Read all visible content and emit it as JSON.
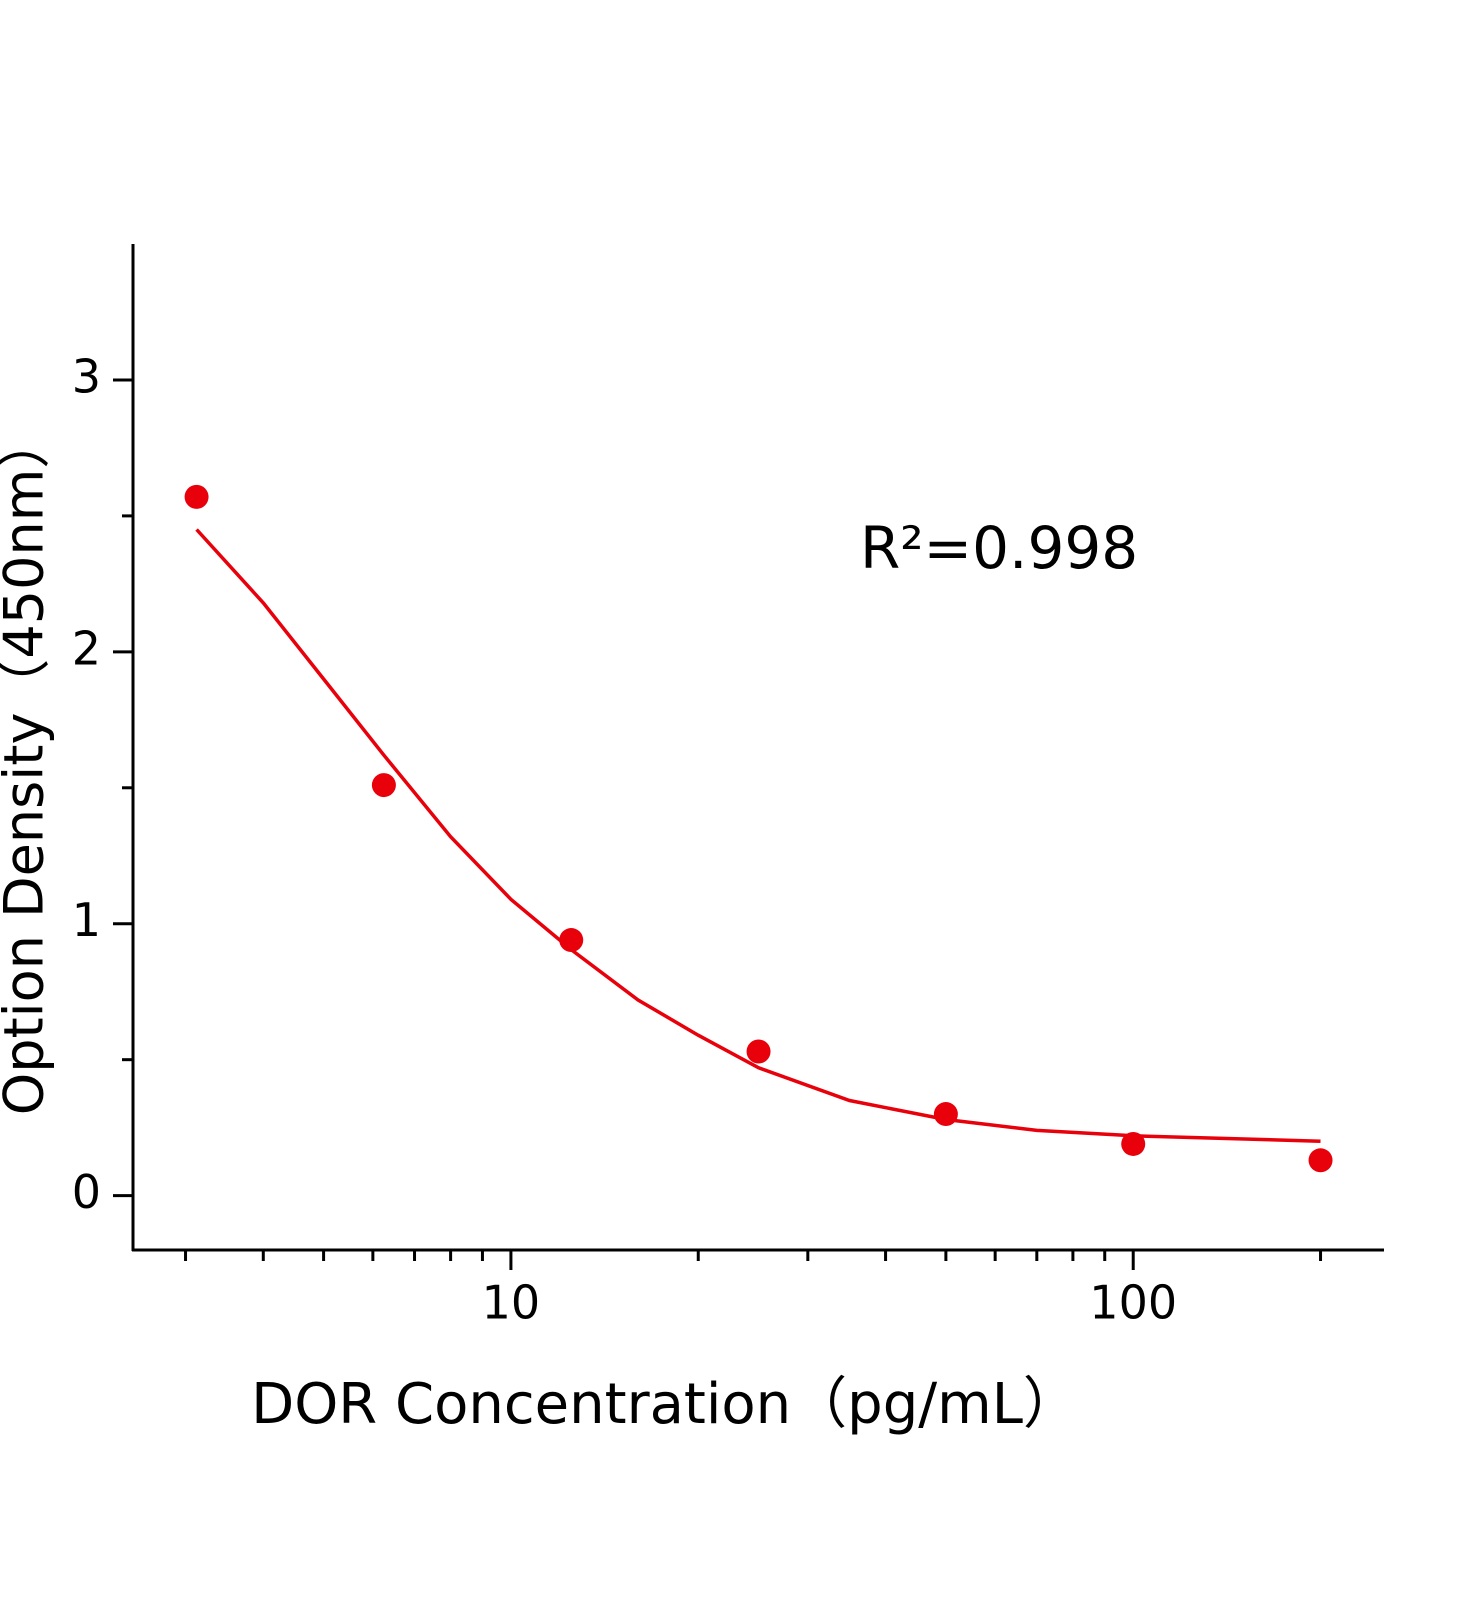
{
  "chart_data": {
    "type": "scatter",
    "x_label": "DOR Concentration（pg/mL）",
    "y_label": "Option Density（450nm）",
    "annotation": "R²=0.998",
    "xscale": "log",
    "xlim": [
      2.47,
      252
    ],
    "ylim": [
      -0.2,
      3.5
    ],
    "xticks": [
      10,
      100
    ],
    "xminorticks": [
      3,
      4,
      5,
      6,
      7,
      8,
      9,
      20,
      30,
      40,
      50,
      60,
      70,
      80,
      90,
      200
    ],
    "yticks": [
      0,
      1,
      2,
      3
    ],
    "yminorticks": [
      0.5,
      1.5,
      2.5
    ],
    "color": "#e8000b",
    "points": {
      "x": [
        3.125,
        6.25,
        12.5,
        25,
        50,
        100,
        200
      ],
      "values": [
        2.57,
        1.51,
        0.94,
        0.53,
        0.3,
        0.19,
        0.13
      ]
    },
    "fit": {
      "x": [
        3.125,
        4,
        5,
        6.25,
        8,
        10,
        12.5,
        16,
        20,
        25,
        35,
        50,
        70,
        100,
        200
      ],
      "values": [
        2.45,
        2.18,
        1.9,
        1.62,
        1.32,
        1.09,
        0.905,
        0.72,
        0.59,
        0.47,
        0.35,
        0.28,
        0.24,
        0.22,
        0.2
      ]
    }
  }
}
